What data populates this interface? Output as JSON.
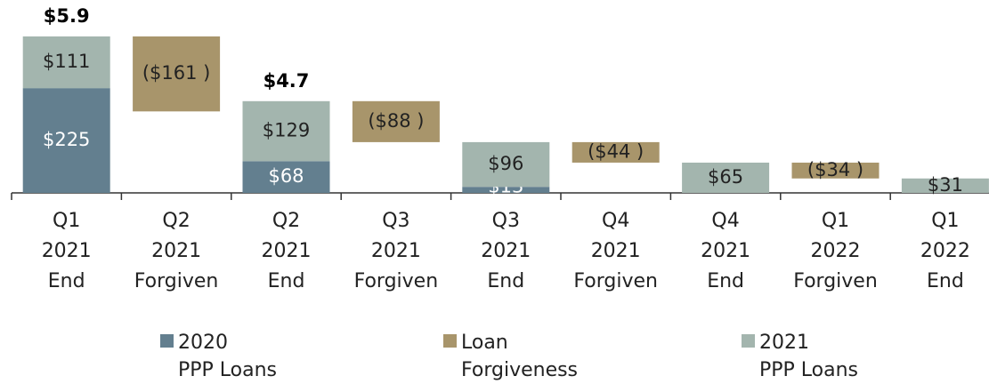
{
  "chart_data": {
    "type": "waterfall",
    "categories": [
      "Q1\n2021\nEnd",
      "Q2\n2021\nForgiven",
      "Q2\n2021\nEnd",
      "Q3\n2021\nForgiven",
      "Q3\n2021\nEnd",
      "Q4\n2021\nForgiven",
      "Q4\n2021\nEnd",
      "Q1\n2022\nForgiven",
      "Q1\n2022\nEnd"
    ],
    "total_labels": [
      "$5.9",
      null,
      "$4.7",
      null,
      null,
      null,
      null,
      null,
      null
    ],
    "series": [
      {
        "name": "2020\nPPP Loans",
        "color": "#637f8f",
        "values": [
          225,
          null,
          68,
          null,
          13,
          null,
          null,
          null,
          null
        ],
        "value_labels": [
          "$225",
          null,
          "$68",
          null,
          "$13",
          null,
          null,
          null,
          null
        ]
      },
      {
        "name": "Loan\nForgiveness",
        "color": "#a8956b",
        "values": [
          null,
          -161,
          null,
          -88,
          null,
          -44,
          null,
          -34,
          null
        ],
        "value_labels": [
          null,
          "($161 )",
          null,
          "($88 )",
          null,
          "($44 )",
          null,
          "($34 )",
          null
        ]
      },
      {
        "name": "2021\nPPP Loans",
        "color": "#a3b5ae",
        "values": [
          111,
          null,
          129,
          null,
          96,
          null,
          65,
          null,
          31
        ],
        "value_labels": [
          "$111",
          null,
          "$129",
          null,
          "$96",
          null,
          "$65",
          null,
          "$31"
        ]
      }
    ]
  }
}
